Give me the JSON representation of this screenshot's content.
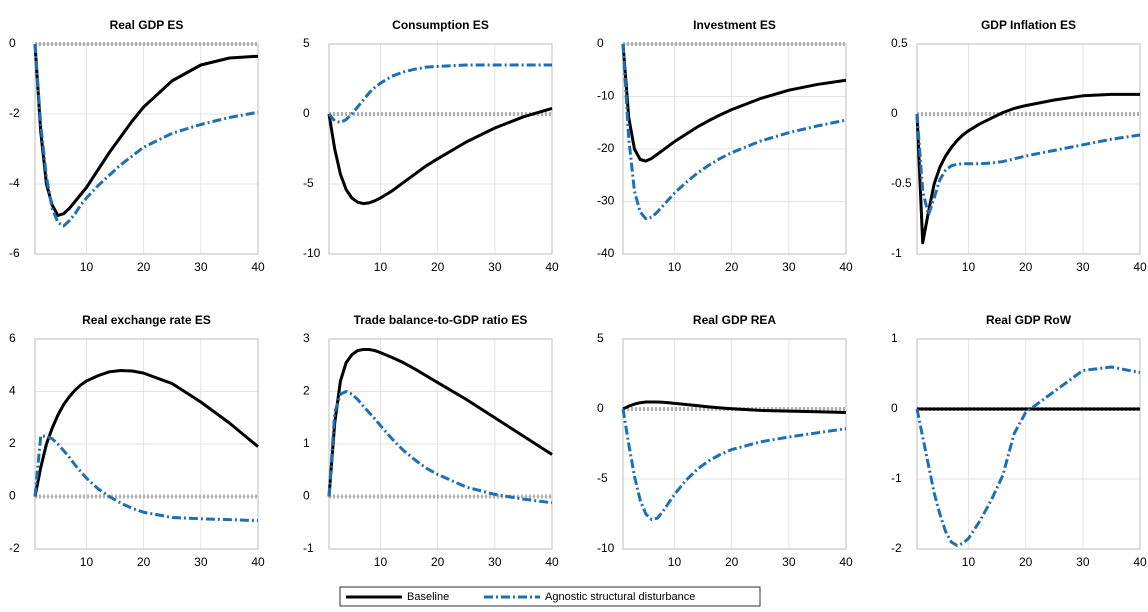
{
  "chart_data": [
    {
      "type": "line",
      "title": "Real GDP ES",
      "x": [
        1,
        2,
        3,
        4,
        5,
        6,
        7,
        8,
        9,
        10,
        12,
        14,
        16,
        18,
        20,
        25,
        30,
        35,
        40
      ],
      "xlim": [
        1,
        40
      ],
      "xticks": [
        10,
        20,
        30,
        40
      ],
      "ylim": [
        -6,
        0
      ],
      "yticks": [
        -6,
        -4,
        -2,
        0
      ],
      "grid": true,
      "series": [
        {
          "name": "Baseline",
          "color": "#000000",
          "linestyle": "solid",
          "values": [
            0,
            -2.5,
            -4,
            -4.6,
            -4.9,
            -4.85,
            -4.7,
            -4.5,
            -4.3,
            -4.1,
            -3.6,
            -3.1,
            -2.65,
            -2.2,
            -1.8,
            -1.05,
            -0.6,
            -0.4,
            -0.35
          ]
        },
        {
          "name": "Agnostic structural disturbance",
          "color": "#1f6fb4",
          "linestyle": "dashdot",
          "values": [
            0,
            -2.3,
            -3.8,
            -4.7,
            -5.1,
            -5.2,
            -5.05,
            -4.85,
            -4.6,
            -4.4,
            -4.05,
            -3.75,
            -3.45,
            -3.2,
            -2.95,
            -2.55,
            -2.3,
            -2.1,
            -1.95
          ]
        }
      ]
    },
    {
      "type": "line",
      "title": "Consumption ES",
      "x": [
        1,
        2,
        3,
        4,
        5,
        6,
        7,
        8,
        9,
        10,
        12,
        14,
        16,
        18,
        20,
        25,
        30,
        35,
        40
      ],
      "xlim": [
        1,
        40
      ],
      "xticks": [
        10,
        20,
        30,
        40
      ],
      "ylim": [
        -10,
        5
      ],
      "yticks": [
        -10,
        -5,
        0,
        5
      ],
      "grid": true,
      "series": [
        {
          "name": "Baseline",
          "color": "#000000",
          "linestyle": "solid",
          "values": [
            0,
            -2.5,
            -4.3,
            -5.4,
            -6,
            -6.3,
            -6.4,
            -6.35,
            -6.2,
            -6,
            -5.5,
            -4.9,
            -4.3,
            -3.7,
            -3.2,
            -2,
            -1,
            -0.2,
            0.4
          ]
        },
        {
          "name": "Agnostic structural disturbance",
          "color": "#1f6fb4",
          "linestyle": "dashdot",
          "values": [
            0,
            -0.5,
            -0.6,
            -0.4,
            0,
            0.5,
            1,
            1.5,
            1.9,
            2.2,
            2.7,
            3,
            3.2,
            3.35,
            3.4,
            3.5,
            3.5,
            3.5,
            3.5
          ]
        }
      ]
    },
    {
      "type": "line",
      "title": "Investment ES",
      "x": [
        1,
        2,
        3,
        4,
        5,
        6,
        7,
        8,
        9,
        10,
        12,
        14,
        16,
        18,
        20,
        25,
        30,
        35,
        40
      ],
      "xlim": [
        1,
        40
      ],
      "xticks": [
        10,
        20,
        30,
        40
      ],
      "ylim": [
        -40,
        0
      ],
      "yticks": [
        -40,
        -30,
        -20,
        -10,
        0
      ],
      "grid": true,
      "series": [
        {
          "name": "Baseline",
          "color": "#000000",
          "linestyle": "solid",
          "values": [
            0,
            -14,
            -20,
            -22,
            -22.3,
            -21.8,
            -21,
            -20.2,
            -19.4,
            -18.6,
            -17.2,
            -15.8,
            -14.6,
            -13.5,
            -12.5,
            -10.4,
            -8.8,
            -7.7,
            -6.9
          ]
        },
        {
          "name": "Agnostic structural disturbance",
          "color": "#1f6fb4",
          "linestyle": "dashdot",
          "values": [
            0,
            -18,
            -28,
            -32,
            -33.3,
            -33,
            -32,
            -30.8,
            -29.6,
            -28.4,
            -26.4,
            -24.6,
            -23.1,
            -21.8,
            -20.7,
            -18.5,
            -16.9,
            -15.6,
            -14.5
          ]
        }
      ]
    },
    {
      "type": "line",
      "title": "GDP Inflation ES",
      "x": [
        1,
        2,
        3,
        4,
        5,
        6,
        7,
        8,
        9,
        10,
        12,
        14,
        16,
        18,
        20,
        25,
        30,
        35,
        40
      ],
      "xlim": [
        1,
        40
      ],
      "xticks": [
        10,
        20,
        30,
        40
      ],
      "ylim": [
        -1,
        0.5
      ],
      "yticks": [
        -1,
        -0.5,
        0,
        0.5
      ],
      "grid": true,
      "series": [
        {
          "name": "Baseline",
          "color": "#000000",
          "linestyle": "solid",
          "values": [
            0,
            -0.92,
            -0.7,
            -0.5,
            -0.38,
            -0.3,
            -0.24,
            -0.19,
            -0.15,
            -0.12,
            -0.07,
            -0.03,
            0.01,
            0.04,
            0.06,
            0.1,
            0.13,
            0.14,
            0.14
          ]
        },
        {
          "name": "Agnostic structural disturbance",
          "color": "#1f6fb4",
          "linestyle": "dashdot",
          "values": [
            0,
            -0.55,
            -0.72,
            -0.6,
            -0.47,
            -0.4,
            -0.37,
            -0.36,
            -0.355,
            -0.355,
            -0.355,
            -0.35,
            -0.34,
            -0.32,
            -0.3,
            -0.26,
            -0.22,
            -0.18,
            -0.15
          ]
        }
      ]
    },
    {
      "type": "line",
      "title": "Real exchange rate ES",
      "x": [
        1,
        2,
        3,
        4,
        5,
        6,
        7,
        8,
        9,
        10,
        12,
        14,
        16,
        18,
        20,
        25,
        30,
        35,
        40
      ],
      "xlim": [
        1,
        40
      ],
      "xticks": [
        10,
        20,
        30,
        40
      ],
      "ylim": [
        -2,
        6
      ],
      "yticks": [
        -2,
        0,
        2,
        4,
        6
      ],
      "grid": true,
      "series": [
        {
          "name": "Baseline",
          "color": "#000000",
          "linestyle": "solid",
          "values": [
            0,
            1.1,
            2,
            2.6,
            3.1,
            3.5,
            3.8,
            4.05,
            4.25,
            4.4,
            4.6,
            4.75,
            4.8,
            4.78,
            4.7,
            4.3,
            3.6,
            2.8,
            1.9
          ]
        },
        {
          "name": "Agnostic structural disturbance",
          "color": "#1f6fb4",
          "linestyle": "dashdot",
          "values": [
            0,
            2.3,
            2.3,
            2.2,
            2,
            1.75,
            1.5,
            1.2,
            0.95,
            0.7,
            0.3,
            0,
            -0.25,
            -0.45,
            -0.6,
            -0.8,
            -0.85,
            -0.88,
            -0.92
          ]
        }
      ]
    },
    {
      "type": "line",
      "title": "Trade balance-to-GDP ratio ES",
      "x": [
        1,
        2,
        3,
        4,
        5,
        6,
        7,
        8,
        9,
        10,
        12,
        14,
        16,
        18,
        20,
        25,
        30,
        35,
        40
      ],
      "xlim": [
        1,
        40
      ],
      "xticks": [
        10,
        20,
        30,
        40
      ],
      "ylim": [
        -1,
        3
      ],
      "yticks": [
        -1,
        0,
        1,
        2,
        3
      ],
      "grid": true,
      "series": [
        {
          "name": "Baseline",
          "color": "#000000",
          "linestyle": "solid",
          "values": [
            0,
            1.4,
            2.2,
            2.55,
            2.7,
            2.78,
            2.8,
            2.8,
            2.78,
            2.74,
            2.65,
            2.55,
            2.43,
            2.3,
            2.17,
            1.85,
            1.5,
            1.15,
            0.8
          ]
        },
        {
          "name": "Agnostic structural disturbance",
          "color": "#1f6fb4",
          "linestyle": "dashdot",
          "values": [
            0,
            1.6,
            1.95,
            2,
            1.95,
            1.85,
            1.72,
            1.6,
            1.48,
            1.35,
            1.1,
            0.88,
            0.7,
            0.54,
            0.42,
            0.18,
            0.04,
            -0.05,
            -0.12
          ]
        }
      ]
    },
    {
      "type": "line",
      "title": "Real GDP REA",
      "x": [
        1,
        2,
        3,
        4,
        5,
        6,
        7,
        8,
        9,
        10,
        12,
        14,
        16,
        18,
        20,
        25,
        30,
        35,
        40
      ],
      "xlim": [
        1,
        40
      ],
      "xticks": [
        10,
        20,
        30,
        40
      ],
      "ylim": [
        -10,
        5
      ],
      "yticks": [
        -10,
        -5,
        0,
        5
      ],
      "grid": true,
      "series": [
        {
          "name": "Baseline",
          "color": "#000000",
          "linestyle": "solid",
          "values": [
            0,
            0.2,
            0.35,
            0.45,
            0.5,
            0.5,
            0.5,
            0.48,
            0.45,
            0.4,
            0.32,
            0.24,
            0.15,
            0.08,
            0.02,
            -0.1,
            -0.15,
            -0.2,
            -0.25
          ]
        },
        {
          "name": "Agnostic structural disturbance",
          "color": "#1f6fb4",
          "linestyle": "dashdot",
          "values": [
            0,
            -2.5,
            -4.8,
            -6.5,
            -7.5,
            -7.9,
            -7.8,
            -7.3,
            -6.7,
            -6.1,
            -5.1,
            -4.3,
            -3.7,
            -3.25,
            -2.9,
            -2.35,
            -2,
            -1.7,
            -1.4
          ]
        }
      ]
    },
    {
      "type": "line",
      "title": "Real GDP RoW",
      "x": [
        1,
        2,
        3,
        4,
        5,
        6,
        7,
        8,
        9,
        10,
        12,
        14,
        16,
        18,
        20,
        25,
        30,
        35,
        40
      ],
      "xlim": [
        1,
        40
      ],
      "xticks": [
        10,
        20,
        30,
        40
      ],
      "ylim": [
        -2,
        1
      ],
      "yticks": [
        -2,
        -1,
        0,
        1
      ],
      "grid": true,
      "series": [
        {
          "name": "Baseline",
          "color": "#000000",
          "linestyle": "solid",
          "values": [
            0,
            0,
            0,
            0,
            0,
            0,
            0,
            0,
            0,
            0,
            0,
            0,
            0,
            0,
            0,
            0,
            0,
            0,
            0
          ]
        },
        {
          "name": "Agnostic structural disturbance",
          "color": "#1f6fb4",
          "linestyle": "dashdot",
          "values": [
            0,
            -0.4,
            -0.8,
            -1.2,
            -1.5,
            -1.75,
            -1.9,
            -1.95,
            -1.92,
            -1.85,
            -1.6,
            -1.3,
            -0.95,
            -0.35,
            -0.05,
            0.25,
            0.55,
            0.6,
            0.52
          ]
        }
      ]
    }
  ]
}
